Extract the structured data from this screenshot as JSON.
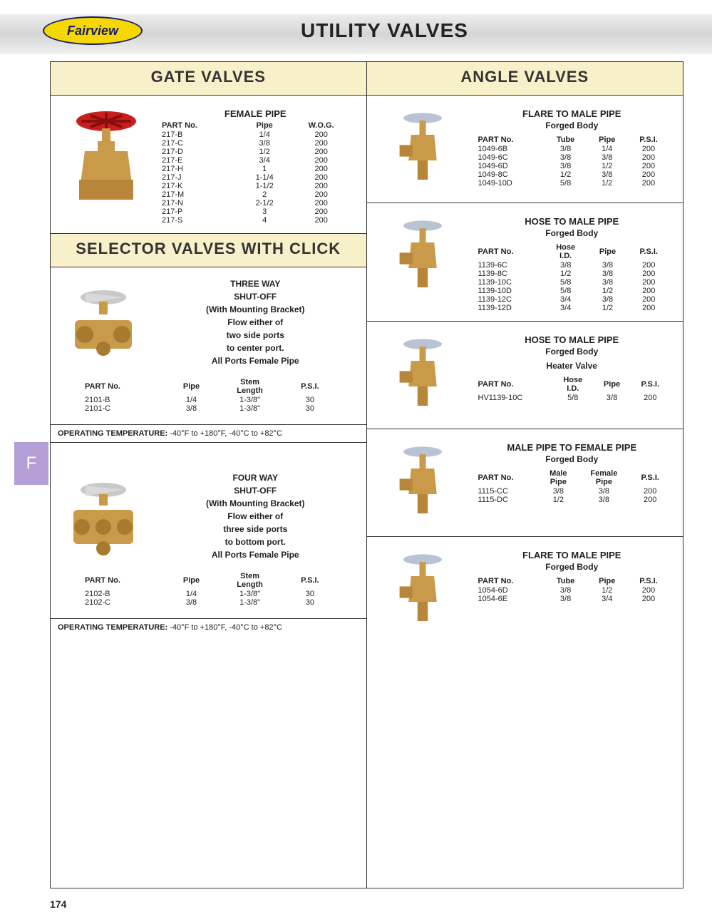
{
  "logo_text": "Fairview",
  "main_title": "UTILITY VALVES",
  "page_number": "174",
  "side_tab": "F",
  "colors": {
    "header_bg": "#f8f0c8",
    "accent_purple": "#b49ed6",
    "logo_bg": "#f5d800",
    "logo_text": "#1a1a6e"
  },
  "left": {
    "h1": "GATE VALVES",
    "gate": {
      "title": "FEMALE PIPE",
      "cols": [
        "PART No.",
        "Pipe",
        "W.O.G."
      ],
      "rows": [
        [
          "217-B",
          "1/4",
          "200"
        ],
        [
          "217-C",
          "3/8",
          "200"
        ],
        [
          "217-D",
          "1/2",
          "200"
        ],
        [
          "217-E",
          "3/4",
          "200"
        ],
        [
          "217-H",
          "1",
          "200"
        ],
        [
          "217-J",
          "1-1/4",
          "200"
        ],
        [
          "217-K",
          "1-1/2",
          "200"
        ],
        [
          "217-M",
          "2",
          "200"
        ],
        [
          "217-N",
          "2-1/2",
          "200"
        ],
        [
          "217-P",
          "3",
          "200"
        ],
        [
          "217-S",
          "4",
          "200"
        ]
      ]
    },
    "h2": "SELECTOR VALVES WITH CLICK",
    "three_way": {
      "title1": "THREE WAY",
      "title2": "SHUT-OFF",
      "title3": "(With Mounting Bracket)",
      "desc": "Flow either of<br>two side ports<br>to center port.<br>All Ports Female Pipe",
      "cols": [
        "PART No.",
        "Pipe",
        "Stem<br>Length",
        "P.S.I."
      ],
      "rows": [
        [
          "2101-B",
          "1/4",
          "1-3/8\"",
          "30"
        ],
        [
          "2101-C",
          "3/8",
          "1-3/8\"",
          "30"
        ]
      ],
      "note_label": "OPERATING TEMPERATURE:",
      "note_val": " -40°F to +180°F, -40°C to +82°C"
    },
    "four_way": {
      "title1": "FOUR WAY",
      "title2": "SHUT-OFF",
      "title3": "(With Mounting Bracket)",
      "desc": "Flow either of<br>three side ports<br>to bottom port.<br>All Ports Female Pipe",
      "cols": [
        "PART No.",
        "Pipe",
        "Stem<br>Length",
        "P.S.I."
      ],
      "rows": [
        [
          "2102-B",
          "1/4",
          "1-3/8\"",
          "30"
        ],
        [
          "2102-C",
          "3/8",
          "1-3/8\"",
          "30"
        ]
      ],
      "note_label": "OPERATING TEMPERATURE:",
      "note_val": " -40°F to +180°F, -40°C to +82°C"
    }
  },
  "right": {
    "h1": "ANGLE VALVES",
    "b1": {
      "title": "FLARE TO MALE PIPE",
      "sub": "Forged Body",
      "cols": [
        "PART No.",
        "Tube",
        "Pipe",
        "P.S.I."
      ],
      "rows": [
        [
          "1049-6B",
          "3/8",
          "1/4",
          "200"
        ],
        [
          "1049-6C",
          "3/8",
          "3/8",
          "200"
        ],
        [
          "1049-6D",
          "3/8",
          "1/2",
          "200"
        ],
        [
          "1049-8C",
          "1/2",
          "3/8",
          "200"
        ],
        [
          "1049-10D",
          "5/8",
          "1/2",
          "200"
        ]
      ]
    },
    "b2": {
      "title": "HOSE TO MALE PIPE",
      "sub": "Forged Body",
      "cols": [
        "PART No.",
        "Hose<br>I.D.",
        "Pipe",
        "P.S.I."
      ],
      "rows": [
        [
          "1139-6C",
          "3/8",
          "3/8",
          "200"
        ],
        [
          "1139-8C",
          "1/2",
          "3/8",
          "200"
        ],
        [
          "1139-10C",
          "5/8",
          "3/8",
          "200"
        ],
        [
          "1139-10D",
          "5/8",
          "1/2",
          "200"
        ],
        [
          "1139-12C",
          "3/4",
          "3/8",
          "200"
        ],
        [
          "1139-12D",
          "3/4",
          "1/2",
          "200"
        ]
      ]
    },
    "b3": {
      "title": "HOSE TO MALE PIPE",
      "sub": "Forged Body",
      "sub2": "Heater Valve",
      "cols": [
        "PART No.",
        "Hose<br>I.D.",
        "Pipe",
        "P.S.I."
      ],
      "rows": [
        [
          "HV1139-10C",
          "5/8",
          "3/8",
          "200"
        ]
      ]
    },
    "b4": {
      "title": "MALE PIPE TO FEMALE PIPE",
      "sub": "Forged Body",
      "cols": [
        "PART No.",
        "Male<br>Pipe",
        "Female<br>Pipe",
        "P.S.I."
      ],
      "rows": [
        [
          "1115-CC",
          "3/8",
          "3/8",
          "200"
        ],
        [
          "1115-DC",
          "1/2",
          "3/8",
          "200"
        ]
      ]
    },
    "b5": {
      "title": "FLARE TO MALE PIPE",
      "sub": "Forged Body",
      "cols": [
        "PART No.",
        "Tube",
        "Pipe",
        "P.S.I."
      ],
      "rows": [
        [
          "1054-6D",
          "3/8",
          "1/2",
          "200"
        ],
        [
          "1054-6E",
          "3/8",
          "3/4",
          "200"
        ]
      ]
    }
  }
}
